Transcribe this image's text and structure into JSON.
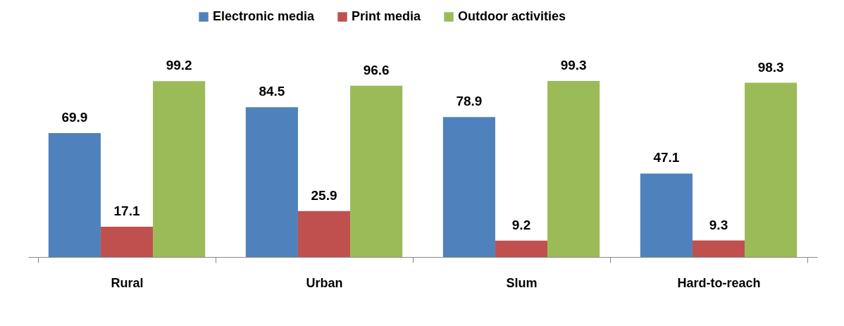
{
  "chart_data": {
    "type": "bar",
    "categories": [
      "Rural",
      "Urban",
      "Slum",
      "Hard-to-reach"
    ],
    "series": [
      {
        "name": "Electronic media",
        "color": "#4f81bd",
        "values": [
          69.9,
          84.5,
          78.9,
          47.1
        ]
      },
      {
        "name": "Print media",
        "color": "#c0504d",
        "values": [
          17.1,
          25.9,
          9.2,
          9.3
        ]
      },
      {
        "name": "Outdoor activities",
        "color": "#9bbb59",
        "values": [
          99.2,
          96.6,
          99.3,
          98.3
        ]
      }
    ],
    "data_labels": true,
    "legend": "top",
    "grid": false,
    "tick_labels": "x"
  }
}
